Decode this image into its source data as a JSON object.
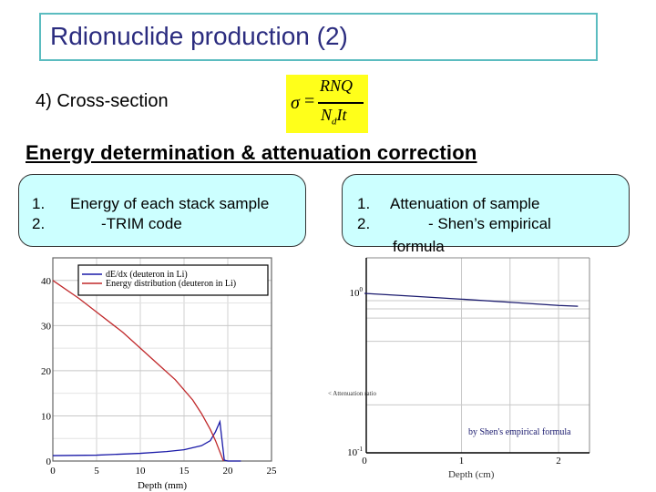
{
  "slide": {
    "title": "Rdionuclide production (2)",
    "subhead": "4) Cross-section",
    "formula": {
      "lhs": "σ",
      "eq": "=",
      "numerator": "RNQ",
      "denominator_main": "N",
      "denominator_sub": "d",
      "denominator_rest": "It",
      "highlight_color": "#ffff1a"
    },
    "section_heading": "Energy determination & attenuation correction",
    "left_panel": {
      "items": [
        {
          "num": "1.",
          "text": "Energy of each stack sample"
        },
        {
          "num": "2.",
          "text": "-TRIM code"
        }
      ]
    },
    "right_panel": {
      "items": [
        {
          "num": "1.",
          "text": "Attenuation of sample"
        },
        {
          "num": "2.",
          "text": "- Shen’s empirical"
        }
      ],
      "overflow": "formula"
    }
  },
  "chart_data": [
    {
      "type": "line",
      "title": "",
      "xlabel": "Depth (mm)",
      "ylabel": "",
      "xlim": [
        0,
        25
      ],
      "ylim": [
        0,
        45
      ],
      "x_ticks": [
        "0",
        "5",
        "10",
        "15",
        "20",
        "25"
      ],
      "y_ticks": [
        "0",
        "10",
        "20",
        "30",
        "40"
      ],
      "grid": true,
      "legend_position": "top-right",
      "series": [
        {
          "name": "dE/dx (deuteron in Li)",
          "color": "#1a1aa8",
          "x": [
            0,
            5,
            10,
            13,
            15,
            17,
            18,
            18.6,
            19.1,
            19.6,
            20,
            21.5
          ],
          "y": [
            1.2,
            1.3,
            1.7,
            2.1,
            2.5,
            3.4,
            4.5,
            6.5,
            8.7,
            0.2,
            0,
            0
          ]
        },
        {
          "name": "Energy distribution (deuteron in Li)",
          "color": "#c0282a",
          "x": [
            0,
            3,
            5,
            8,
            10,
            12,
            14,
            16,
            17,
            18,
            18.6,
            19.2,
            19.5
          ],
          "y": [
            40,
            36,
            33,
            28.5,
            25,
            21.5,
            18,
            13.5,
            10.5,
            7,
            4.5,
            1.5,
            0
          ]
        }
      ]
    },
    {
      "type": "line",
      "title": "",
      "xlabel": "Depth (cm)",
      "ylabel": "Attenuation ratio",
      "yscale": "log",
      "xlim": [
        0,
        2.3
      ],
      "ylim": [
        0.1,
        1.5
      ],
      "x_ticks": [
        "0",
        "1",
        "2"
      ],
      "y_ticks": [
        "10^-1",
        "10^0"
      ],
      "grid": true,
      "annotation": "by Shen's empirical formula",
      "series": [
        {
          "name": "Attenuation (Shen)",
          "color": "#1a1a6e",
          "x": [
            0,
            0.5,
            1.0,
            1.5,
            2.0,
            2.2
          ],
          "y": [
            1.0,
            0.96,
            0.92,
            0.88,
            0.84,
            0.83
          ]
        }
      ]
    }
  ]
}
